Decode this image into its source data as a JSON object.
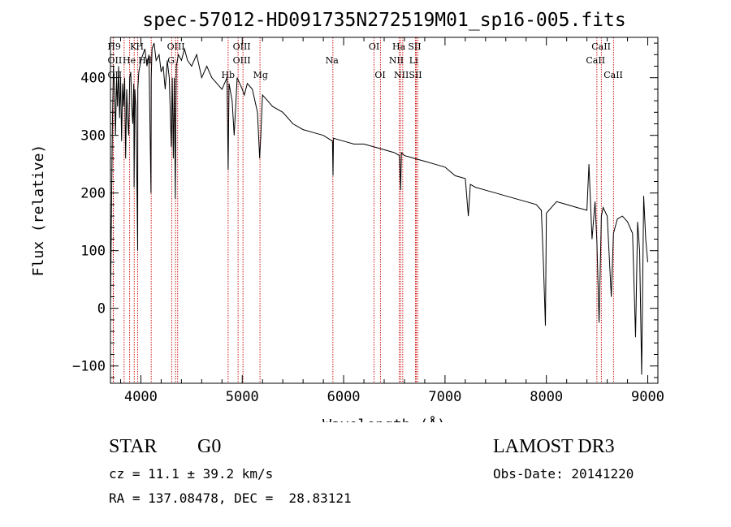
{
  "chart_data": {
    "type": "line",
    "title": "spec-57012-HD091735N272519M01_sp16-005.fits",
    "xlabel": "Wavelength (Å)",
    "ylabel": "Flux (relative)",
    "xlim": [
      3700,
      9100
    ],
    "ylim": [
      -130,
      470
    ],
    "x_ticks": [
      4000,
      5000,
      6000,
      7000,
      8000,
      9000
    ],
    "y_ticks": [
      -100,
      0,
      100,
      200,
      300,
      400
    ],
    "grid": false,
    "series": [
      {
        "name": "spectrum",
        "x": [
          3700,
          3710,
          3720,
          3730,
          3740,
          3750,
          3760,
          3770,
          3780,
          3790,
          3800,
          3810,
          3820,
          3830,
          3840,
          3850,
          3860,
          3870,
          3880,
          3890,
          3900,
          3910,
          3920,
          3930,
          3933,
          3940,
          3950,
          3960,
          3968,
          3970,
          3980,
          3990,
          4000,
          4020,
          4040,
          4060,
          4080,
          4100,
          4102,
          4110,
          4130,
          4150,
          4180,
          4200,
          4220,
          4240,
          4260,
          4280,
          4300,
          4310,
          4320,
          4330,
          4340,
          4345,
          4350,
          4370,
          4400,
          4430,
          4460,
          4500,
          4550,
          4600,
          4650,
          4700,
          4750,
          4800,
          4850,
          4861,
          4870,
          4900,
          4920,
          4950,
          5000,
          5020,
          5050,
          5100,
          5150,
          5172,
          5183,
          5200,
          5250,
          5300,
          5400,
          5500,
          5600,
          5700,
          5800,
          5890,
          5895,
          5900,
          6000,
          6100,
          6200,
          6300,
          6400,
          6500,
          6550,
          6563,
          6570,
          6600,
          6700,
          6800,
          6900,
          7000,
          7100,
          7200,
          7230,
          7250,
          7300,
          7400,
          7500,
          7600,
          7700,
          7800,
          7900,
          7950,
          7970,
          7990,
          8000,
          8100,
          8200,
          8300,
          8400,
          8420,
          8450,
          8480,
          8498,
          8520,
          8542,
          8560,
          8600,
          8640,
          8662,
          8700,
          8750,
          8800,
          8850,
          8880,
          8900,
          8920,
          8940,
          8960,
          8980,
          9000
        ],
        "values": [
          0,
          160,
          330,
          420,
          380,
          300,
          400,
          350,
          420,
          330,
          400,
          290,
          390,
          350,
          400,
          260,
          380,
          330,
          300,
          400,
          410,
          350,
          320,
          390,
          210,
          380,
          350,
          230,
          100,
          380,
          410,
          420,
          430,
          440,
          450,
          420,
          440,
          200,
          400,
          450,
          460,
          430,
          440,
          410,
          420,
          380,
          430,
          400,
          280,
          400,
          260,
          400,
          190,
          330,
          420,
          440,
          430,
          450,
          430,
          420,
          440,
          400,
          420,
          400,
          390,
          380,
          400,
          240,
          390,
          360,
          300,
          400,
          380,
          370,
          390,
          380,
          340,
          260,
          300,
          370,
          360,
          350,
          340,
          320,
          310,
          305,
          300,
          290,
          230,
          295,
          290,
          285,
          285,
          280,
          275,
          270,
          265,
          205,
          270,
          265,
          260,
          255,
          250,
          245,
          230,
          225,
          160,
          215,
          210,
          205,
          200,
          195,
          190,
          185,
          180,
          170,
          80,
          -30,
          165,
          185,
          180,
          175,
          170,
          250,
          120,
          185,
          115,
          -25,
          160,
          175,
          160,
          20,
          130,
          155,
          160,
          150,
          130,
          -50,
          150,
          100,
          -115,
          195,
          120,
          80
        ]
      }
    ],
    "lines": [
      {
        "name": "H9",
        "x": 3835
      },
      {
        "name": "OII",
        "x": 3727
      },
      {
        "name": "OII",
        "x": 3729
      },
      {
        "name": "He",
        "x": 3889
      },
      {
        "name": "K",
        "x": 3934
      },
      {
        "name": "H",
        "x": 3969
      },
      {
        "name": "Hd",
        "x": 4102
      },
      {
        "name": "G",
        "x": 4305
      },
      {
        "name": "Hg",
        "x": 4341
      },
      {
        "name": "OIII",
        "x": 4363
      },
      {
        "name": "Hb",
        "x": 4861
      },
      {
        "name": "OIII",
        "x": 4959
      },
      {
        "name": "OIII",
        "x": 5007
      },
      {
        "name": "Mg",
        "x": 5175
      },
      {
        "name": "Na",
        "x": 5894
      },
      {
        "name": "OI",
        "x": 6300
      },
      {
        "name": "OI",
        "x": 6363
      },
      {
        "name": "NII",
        "x": 6548
      },
      {
        "name": "Ha",
        "x": 6563
      },
      {
        "name": "NII",
        "x": 6583
      },
      {
        "name": "Li",
        "x": 6708
      },
      {
        "name": "SII",
        "x": 6716
      },
      {
        "name": "SII",
        "x": 6731
      },
      {
        "name": "CaII",
        "x": 8498
      },
      {
        "name": "CaII",
        "x": 8542
      },
      {
        "name": "CaII",
        "x": 8662
      }
    ],
    "line_labels": [
      {
        "text": "H9",
        "x": 3737,
        "row": 0
      },
      {
        "text": "K",
        "x": 3925,
        "row": 0
      },
      {
        "text": "H",
        "x": 3990,
        "row": 0
      },
      {
        "text": "OIII",
        "x": 4346,
        "row": 0
      },
      {
        "text": "OIII",
        "x": 4995,
        "row": 0
      },
      {
        "text": "OI",
        "x": 6300,
        "row": 0
      },
      {
        "text": "Ha",
        "x": 6545,
        "row": 0
      },
      {
        "text": "SII",
        "x": 6700,
        "row": 0
      },
      {
        "text": "CaII",
        "x": 8540,
        "row": 0
      },
      {
        "text": "OII",
        "x": 3743,
        "row": 1
      },
      {
        "text": "He",
        "x": 3885,
        "row": 1
      },
      {
        "text": "Hd",
        "x": 4040,
        "row": 1
      },
      {
        "text": "G",
        "x": 4298,
        "row": 1
      },
      {
        "text": "OIII",
        "x": 4995,
        "row": 1
      },
      {
        "text": "Na",
        "x": 5885,
        "row": 1
      },
      {
        "text": "NII",
        "x": 6520,
        "row": 1
      },
      {
        "text": "Li",
        "x": 6690,
        "row": 1
      },
      {
        "text": "CaII",
        "x": 8485,
        "row": 1
      },
      {
        "text": "OII",
        "x": 3743,
        "row": 2
      },
      {
        "text": "Hb",
        "x": 4860,
        "row": 2
      },
      {
        "text": "Mg",
        "x": 5180,
        "row": 2
      },
      {
        "text": "OI",
        "x": 6360,
        "row": 2
      },
      {
        "text": "NII",
        "x": 6570,
        "row": 2
      },
      {
        "text": "SII",
        "x": 6708,
        "row": 2
      },
      {
        "text": "CaII",
        "x": 8660,
        "row": 2
      }
    ]
  },
  "info": {
    "object_class": "STAR",
    "subclass": "G0",
    "survey": "LAMOST DR3",
    "cz": "cz = 11.1 ± 39.2 km/s",
    "obs_date": "Obs-Date: 20141220",
    "coords": "RA = 137.08478, DEC =  28.83121"
  },
  "colors": {
    "spectrum": "#000000",
    "lines": "#cc0000",
    "axes": "#000000"
  }
}
